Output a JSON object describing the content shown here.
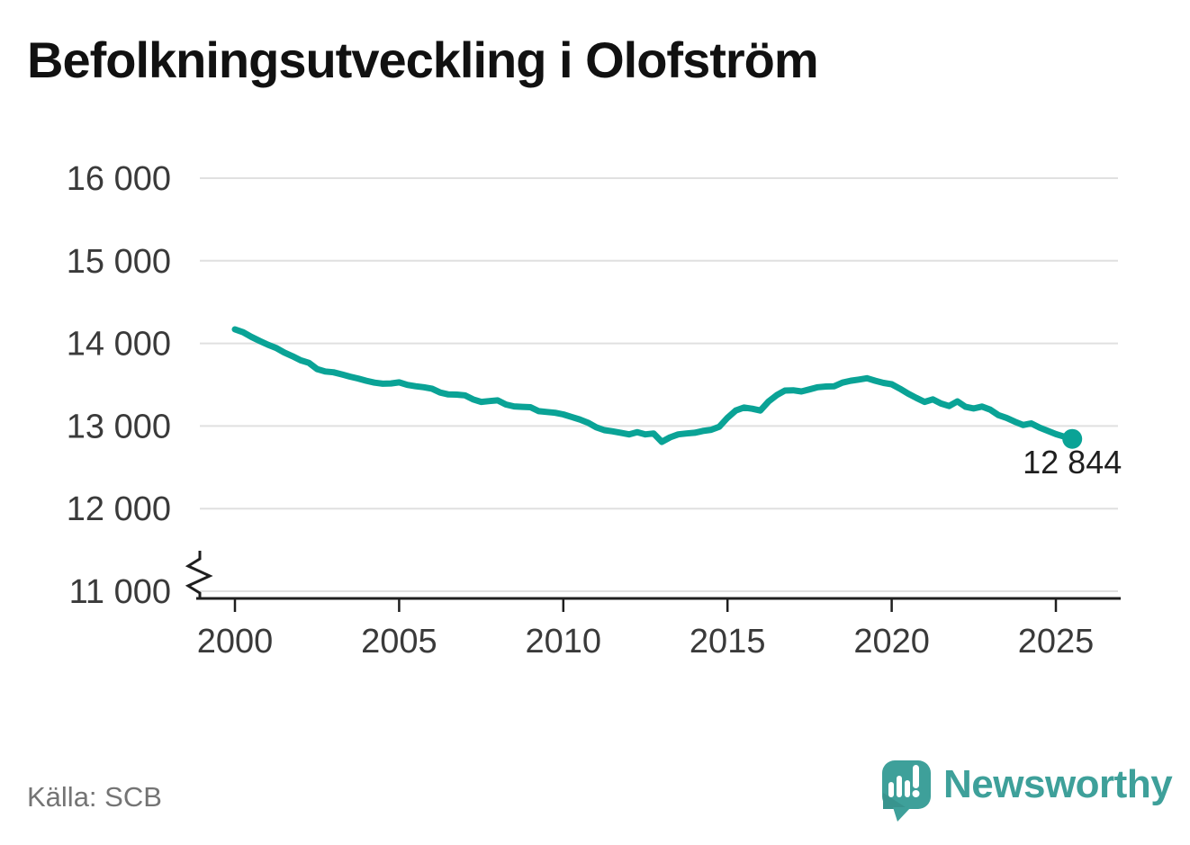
{
  "header": {
    "title": "Befolkningsutveckling i Olofström"
  },
  "footer": {
    "source": "Källa: SCB",
    "brand": "Newsworthy"
  },
  "colors": {
    "background": "#ffffff",
    "line": "#0aa396",
    "grid": "#e0e0e0",
    "axis": "#1f1f1f",
    "tick_label": "#3a3a3a",
    "title": "#111111",
    "end_label": "#1f1f1f",
    "source_text": "#747474",
    "brand": "#3ea09a",
    "brand_shade": "#38948e"
  },
  "chart_data": {
    "type": "line",
    "title": "Befolkningsutveckling i Olofström",
    "xlabel": "",
    "ylabel": "",
    "x_unit": "year",
    "ylim": [
      11000,
      16000
    ],
    "xlim": [
      1999,
      2027
    ],
    "grid": "horizontal",
    "legend": "none",
    "axis_break": true,
    "source": "SCB",
    "yticks": [
      {
        "value": 16000,
        "label": "16 000"
      },
      {
        "value": 15000,
        "label": "15 000"
      },
      {
        "value": 14000,
        "label": "14 000"
      },
      {
        "value": 13000,
        "label": "13 000"
      },
      {
        "value": 12000,
        "label": "12 000"
      },
      {
        "value": 11000,
        "label": "11 000"
      }
    ],
    "xticks": [
      {
        "value": 2000,
        "label": "2000"
      },
      {
        "value": 2005,
        "label": "2005"
      },
      {
        "value": 2010,
        "label": "2010"
      },
      {
        "value": 2015,
        "label": "2015"
      },
      {
        "value": 2020,
        "label": "2020"
      },
      {
        "value": 2025,
        "label": "2025"
      }
    ],
    "end_point": {
      "x": 2025.5,
      "value": 12844,
      "label": "12 844"
    },
    "points": [
      [
        2000.0,
        14170
      ],
      [
        2000.25,
        14135
      ],
      [
        2000.5,
        14080
      ],
      [
        2000.75,
        14030
      ],
      [
        2001.0,
        13985
      ],
      [
        2001.25,
        13945
      ],
      [
        2001.5,
        13890
      ],
      [
        2001.75,
        13845
      ],
      [
        2002.0,
        13795
      ],
      [
        2002.25,
        13765
      ],
      [
        2002.5,
        13690
      ],
      [
        2002.75,
        13660
      ],
      [
        2003.0,
        13650
      ],
      [
        2003.25,
        13625
      ],
      [
        2003.5,
        13598
      ],
      [
        2003.75,
        13575
      ],
      [
        2004.0,
        13548
      ],
      [
        2004.25,
        13525
      ],
      [
        2004.5,
        13512
      ],
      [
        2004.75,
        13515
      ],
      [
        2005.0,
        13528
      ],
      [
        2005.25,
        13498
      ],
      [
        2005.5,
        13482
      ],
      [
        2005.75,
        13470
      ],
      [
        2006.0,
        13452
      ],
      [
        2006.25,
        13405
      ],
      [
        2006.5,
        13382
      ],
      [
        2006.75,
        13380
      ],
      [
        2007.0,
        13372
      ],
      [
        2007.25,
        13322
      ],
      [
        2007.5,
        13292
      ],
      [
        2007.75,
        13302
      ],
      [
        2008.0,
        13310
      ],
      [
        2008.25,
        13260
      ],
      [
        2008.5,
        13238
      ],
      [
        2008.75,
        13232
      ],
      [
        2009.0,
        13228
      ],
      [
        2009.25,
        13180
      ],
      [
        2009.5,
        13170
      ],
      [
        2009.75,
        13160
      ],
      [
        2010.0,
        13140
      ],
      [
        2010.25,
        13110
      ],
      [
        2010.5,
        13080
      ],
      [
        2010.75,
        13040
      ],
      [
        2011.0,
        12985
      ],
      [
        2011.25,
        12950
      ],
      [
        2011.5,
        12936
      ],
      [
        2011.75,
        12918
      ],
      [
        2012.0,
        12899
      ],
      [
        2012.25,
        12925
      ],
      [
        2012.5,
        12899
      ],
      [
        2012.75,
        12910
      ],
      [
        2013.0,
        12808
      ],
      [
        2013.25,
        12863
      ],
      [
        2013.5,
        12899
      ],
      [
        2013.75,
        12910
      ],
      [
        2014.0,
        12918
      ],
      [
        2014.25,
        12940
      ],
      [
        2014.5,
        12954
      ],
      [
        2014.75,
        12991
      ],
      [
        2015.0,
        13100
      ],
      [
        2015.25,
        13187
      ],
      [
        2015.5,
        13223
      ],
      [
        2015.75,
        13209
      ],
      [
        2016.0,
        13187
      ],
      [
        2016.25,
        13297
      ],
      [
        2016.5,
        13374
      ],
      [
        2016.75,
        13429
      ],
      [
        2017.0,
        13432
      ],
      [
        2017.25,
        13418
      ],
      [
        2017.5,
        13443
      ],
      [
        2017.75,
        13470
      ],
      [
        2018.0,
        13478
      ],
      [
        2018.25,
        13482
      ],
      [
        2018.5,
        13525
      ],
      [
        2018.75,
        13548
      ],
      [
        2019.0,
        13562
      ],
      [
        2019.25,
        13578
      ],
      [
        2019.5,
        13548
      ],
      [
        2019.75,
        13522
      ],
      [
        2020.0,
        13505
      ],
      [
        2020.25,
        13452
      ],
      [
        2020.5,
        13392
      ],
      [
        2020.75,
        13340
      ],
      [
        2021.0,
        13292
      ],
      [
        2021.25,
        13322
      ],
      [
        2021.5,
        13272
      ],
      [
        2021.75,
        13242
      ],
      [
        2022.0,
        13298
      ],
      [
        2022.25,
        13232
      ],
      [
        2022.5,
        13212
      ],
      [
        2022.75,
        13235
      ],
      [
        2023.0,
        13198
      ],
      [
        2023.25,
        13132
      ],
      [
        2023.5,
        13098
      ],
      [
        2023.75,
        13052
      ],
      [
        2024.0,
        13012
      ],
      [
        2024.25,
        13032
      ],
      [
        2024.5,
        12982
      ],
      [
        2024.75,
        12942
      ],
      [
        2025.0,
        12902
      ],
      [
        2025.25,
        12872
      ],
      [
        2025.5,
        12844
      ]
    ]
  }
}
